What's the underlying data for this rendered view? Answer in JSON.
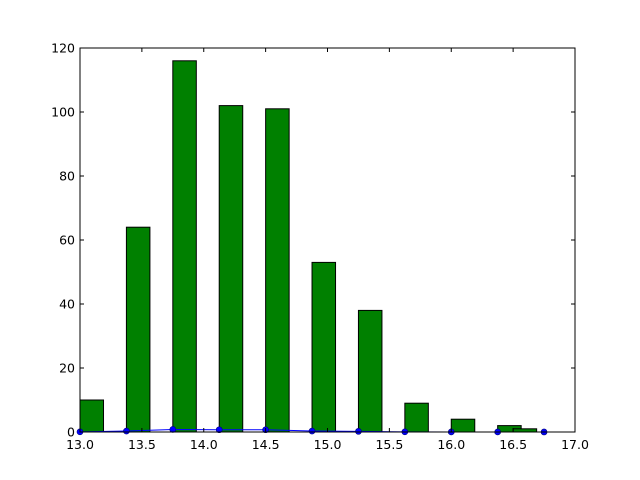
{
  "chart_data": {
    "type": "bar",
    "title": "",
    "xlabel": "",
    "ylabel": "",
    "xlim": [
      13.0,
      17.0
    ],
    "ylim": [
      0,
      120
    ],
    "grid": false,
    "legend": "none",
    "xticks": [
      "13.0",
      "13.5",
      "14.0",
      "14.5",
      "15.0",
      "15.5",
      "16.0",
      "16.5",
      "17.0"
    ],
    "yticks": [
      "0",
      "20",
      "40",
      "60",
      "80",
      "100",
      "120"
    ],
    "bars": {
      "color": "#008000",
      "edge_color": "#000000",
      "width": 0.19,
      "left_edges": [
        13.0,
        13.375,
        13.75,
        14.125,
        14.5,
        14.875,
        15.25,
        15.625,
        16.0,
        16.375,
        16.5
      ],
      "values": [
        10,
        64,
        116,
        102,
        101,
        53,
        38,
        9,
        4,
        2,
        1
      ]
    },
    "line": {
      "color": "#0000ff",
      "marker": "circle",
      "x": [
        13.0,
        13.375,
        13.75,
        14.125,
        14.5,
        14.875,
        15.25,
        15.625,
        16.0,
        16.375,
        16.75
      ],
      "y": [
        0.05,
        0.3,
        0.8,
        0.7,
        0.7,
        0.3,
        0.2,
        0.05,
        0.02,
        0.01,
        0.005
      ]
    }
  }
}
